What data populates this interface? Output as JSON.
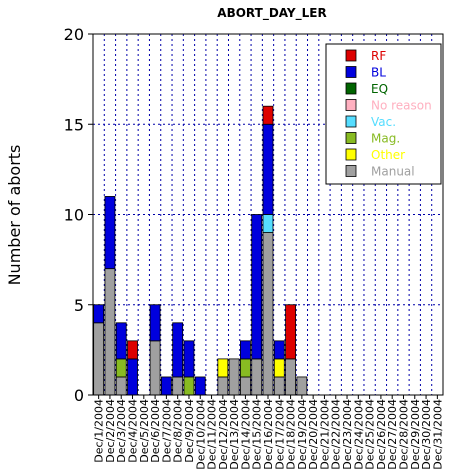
{
  "chart_data": {
    "type": "bar",
    "stacked": true,
    "title": "ABORT_DAY_LER",
    "xlabel": "",
    "ylabel": "Number of aborts",
    "ylim": [
      0,
      20
    ],
    "yticks": [
      0,
      5,
      10,
      15,
      20
    ],
    "grid": true,
    "legend_position": "top-right",
    "categories": [
      "Dec/1/2004",
      "Dec/2/2004",
      "Dec/3/2004",
      "Dec/4/2004",
      "Dec/5/2004",
      "Dec/6/2004",
      "Dec/7/2004",
      "Dec/8/2004",
      "Dec/9/2004",
      "Dec/10/2004",
      "Dec/11/2004",
      "Dec/12/2004",
      "Dec/13/2004",
      "Dec/14/2004",
      "Dec/15/2004",
      "Dec/16/2004",
      "Dec/17/2004",
      "Dec/18/2004",
      "Dec/19/2004",
      "Dec/20/2004",
      "Dec/21/2004",
      "Dec/22/2004",
      "Dec/23/2004",
      "Dec/24/2004",
      "Dec/25/2004",
      "Dec/26/2004",
      "Dec/27/2004",
      "Dec/28/2004",
      "Dec/29/2004",
      "Dec/30/2004",
      "Dec/31/2004"
    ],
    "series": [
      {
        "name": "Manual",
        "color": "#a0a0a0",
        "values": [
          4,
          7,
          1,
          0,
          0,
          3,
          0,
          1,
          0,
          0,
          0,
          1,
          2,
          1,
          2,
          9,
          1,
          2,
          1,
          0,
          0,
          0,
          0,
          0,
          0,
          0,
          0,
          0,
          0,
          0,
          0
        ]
      },
      {
        "name": "Other",
        "color": "#ffff00",
        "values": [
          0,
          0,
          0,
          0,
          0,
          0,
          0,
          0,
          0,
          0,
          0,
          1,
          0,
          0,
          0,
          0,
          1,
          0,
          0,
          0,
          0,
          0,
          0,
          0,
          0,
          0,
          0,
          0,
          0,
          0,
          0
        ]
      },
      {
        "name": "Mag.",
        "color": "#88bb22",
        "values": [
          0,
          0,
          1,
          0,
          0,
          0,
          0,
          0,
          1,
          0,
          0,
          0,
          0,
          1,
          0,
          0,
          0,
          0,
          0,
          0,
          0,
          0,
          0,
          0,
          0,
          0,
          0,
          0,
          0,
          0,
          0
        ]
      },
      {
        "name": "Vac.",
        "color": "#55ddff",
        "values": [
          0,
          0,
          0,
          0,
          0,
          0,
          0,
          0,
          0,
          0,
          0,
          0,
          0,
          0,
          0,
          1,
          0,
          0,
          0,
          0,
          0,
          0,
          0,
          0,
          0,
          0,
          0,
          0,
          0,
          0,
          0
        ]
      },
      {
        "name": "No reason",
        "color": "#ffb0c0",
        "values": [
          0,
          0,
          0,
          0,
          0,
          0,
          0,
          0,
          0,
          0,
          0,
          0,
          0,
          0,
          0,
          0,
          0,
          0,
          0,
          0,
          0,
          0,
          0,
          0,
          0,
          0,
          0,
          0,
          0,
          0,
          0
        ]
      },
      {
        "name": "EQ",
        "color": "#006400",
        "values": [
          0,
          0,
          0,
          0,
          0,
          0,
          0,
          0,
          0,
          0,
          0,
          0,
          0,
          0,
          0,
          0,
          0,
          0,
          0,
          0,
          0,
          0,
          0,
          0,
          0,
          0,
          0,
          0,
          0,
          0,
          0
        ]
      },
      {
        "name": "BL",
        "color": "#0000dd",
        "values": [
          1,
          4,
          2,
          2,
          0,
          2,
          1,
          3,
          2,
          1,
          0,
          0,
          0,
          1,
          8,
          5,
          1,
          0,
          0,
          0,
          0,
          0,
          0,
          0,
          0,
          0,
          0,
          0,
          0,
          0,
          0
        ]
      },
      {
        "name": "RF",
        "color": "#dd0000",
        "values": [
          0,
          0,
          0,
          1,
          0,
          0,
          0,
          0,
          0,
          0,
          0,
          0,
          0,
          0,
          0,
          1,
          0,
          3,
          0,
          0,
          0,
          0,
          0,
          0,
          0,
          0,
          0,
          0,
          0,
          0,
          0
        ]
      }
    ],
    "legend": [
      {
        "name": "RF",
        "color": "#dd0000"
      },
      {
        "name": "BL",
        "color": "#0000dd"
      },
      {
        "name": "EQ",
        "color": "#006400"
      },
      {
        "name": "No reason",
        "color": "#ffb0c0"
      },
      {
        "name": "Vac.",
        "color": "#55ddff"
      },
      {
        "name": "Mag.",
        "color": "#88bb22"
      },
      {
        "name": "Other",
        "color": "#ffff00"
      },
      {
        "name": "Manual",
        "color": "#a0a0a0"
      }
    ]
  }
}
